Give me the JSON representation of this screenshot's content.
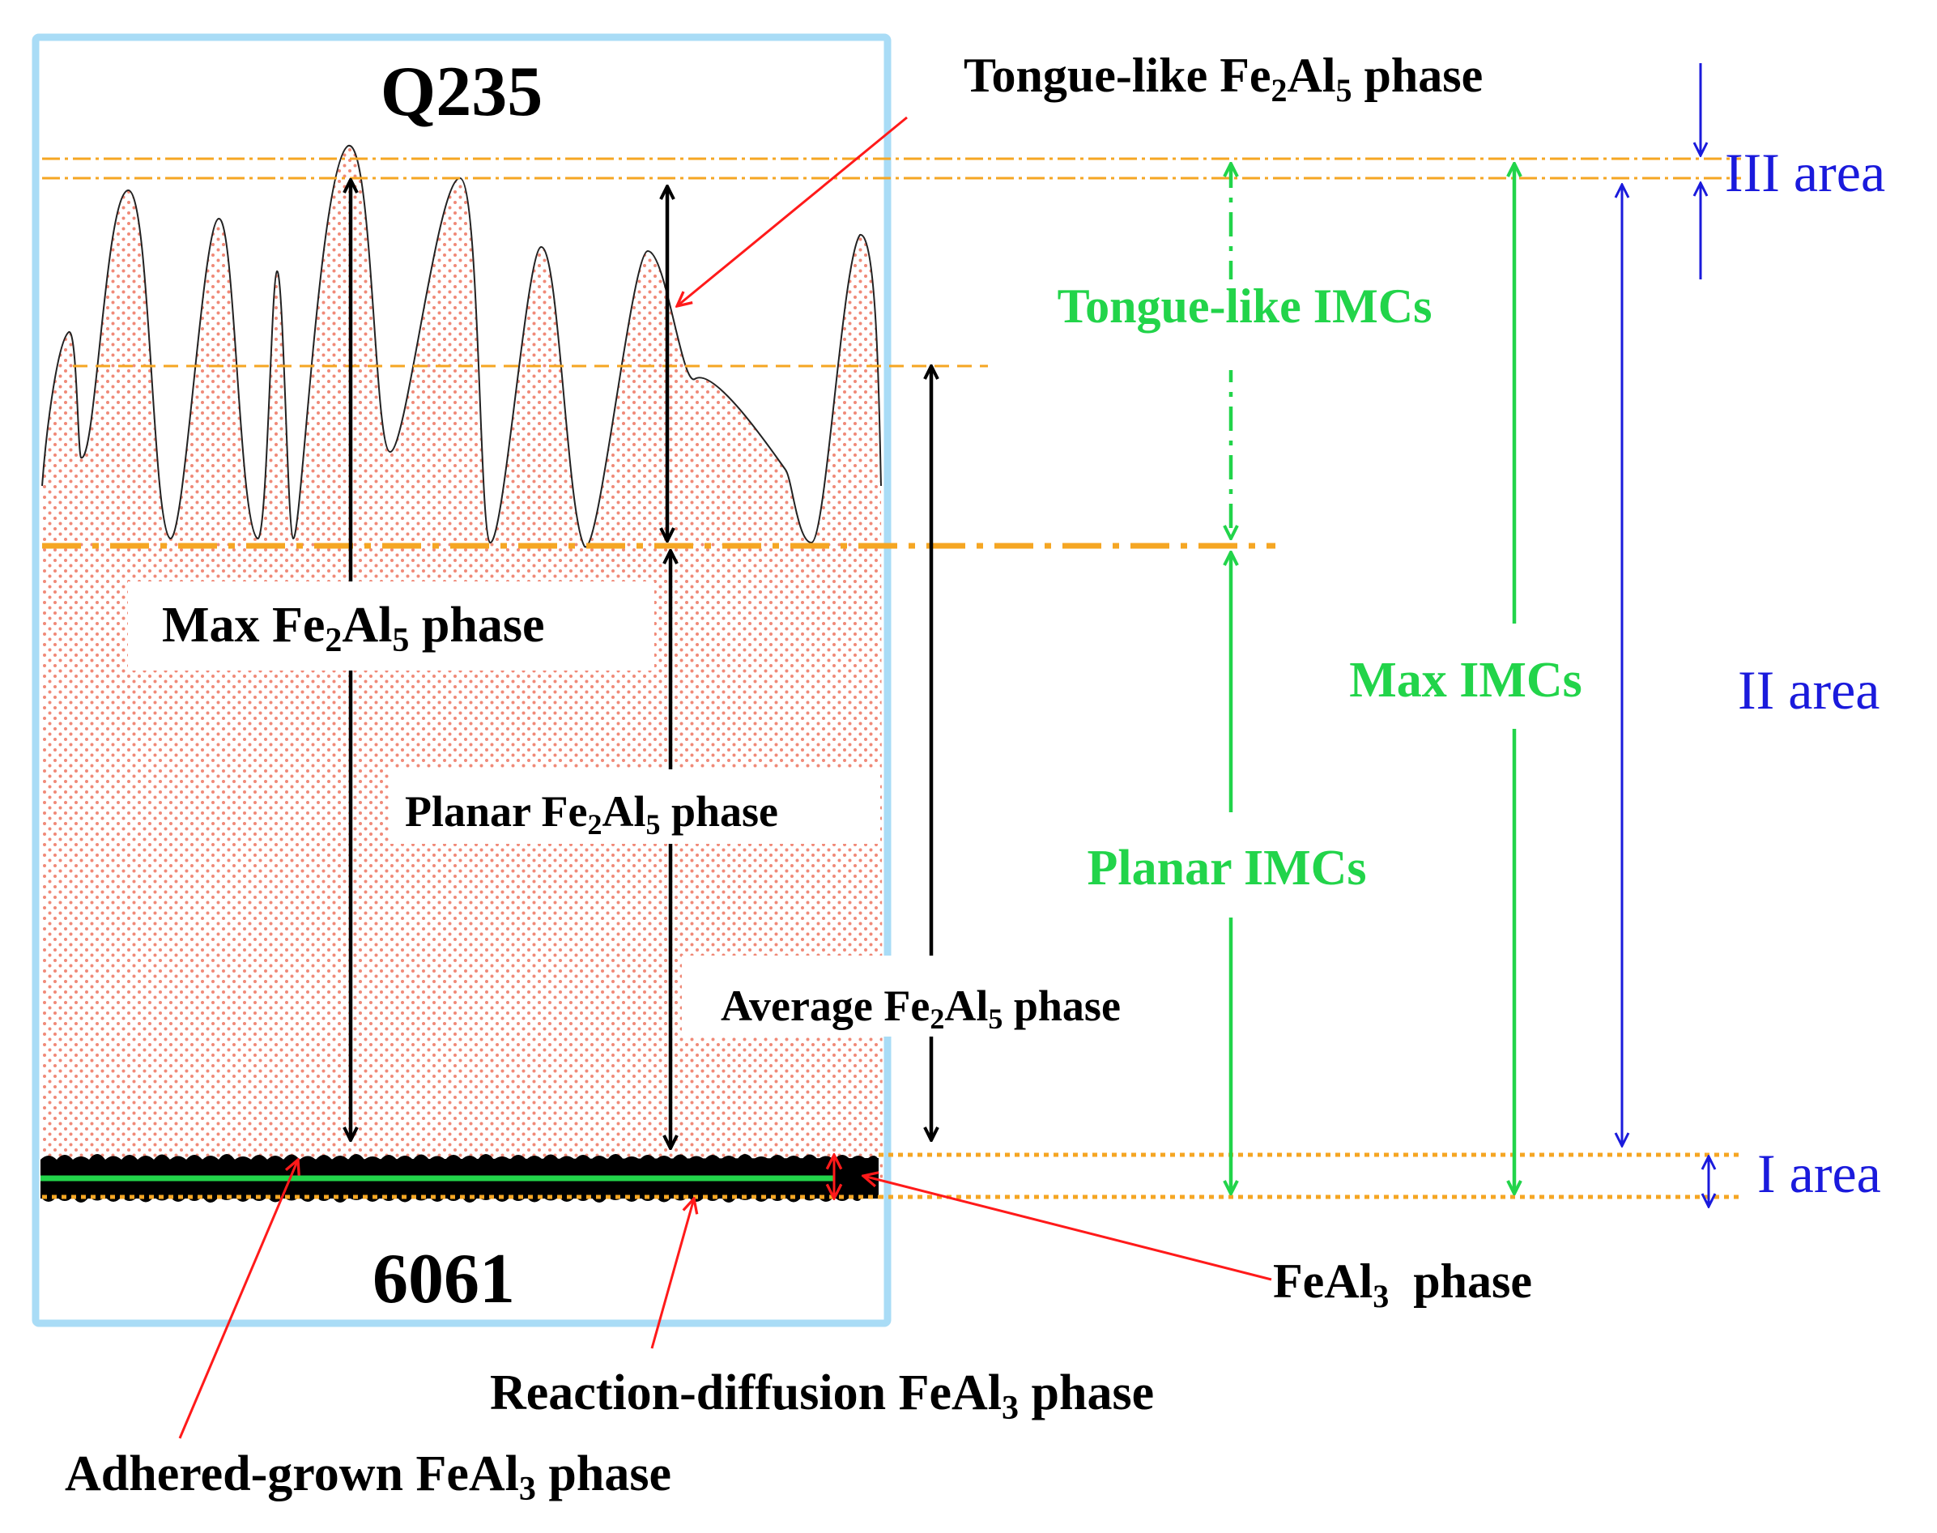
{
  "labels": {
    "q235": "Q235",
    "al6061": "6061",
    "tongue_like_phase": [
      "Tongue-like Fe",
      "2",
      "Al",
      "5",
      " phase"
    ],
    "max_phase": [
      "Max Fe",
      "2",
      "Al",
      "5",
      " phase"
    ],
    "planar_phase": [
      "Planar Fe",
      "2",
      "Al",
      "5",
      " phase"
    ],
    "average_phase": [
      "Average Fe",
      "2",
      "Al",
      "5",
      " phase"
    ],
    "tongue_like_imcs": "Tongue-like IMCs",
    "max_imcs": "Max IMCs",
    "planar_imcs": "Planar IMCs",
    "area_iii": "III area",
    "area_ii": "II area",
    "area_i": "I area",
    "feal3_phase": [
      "FeAl",
      "3",
      "  phase"
    ],
    "reaction_diffusion": [
      "Reaction-diffusion FeAl",
      "3",
      " phase"
    ],
    "adhered_grown": [
      "Adhered-grown FeAl",
      "3",
      " phase"
    ]
  },
  "colors": {
    "frame": "#a9dcf6",
    "dots": "#f08a78",
    "orange": "#f5a623",
    "green": "#22d44a",
    "blue": "#1a1adc",
    "red": "#ff1a1a",
    "black": "#000000"
  }
}
